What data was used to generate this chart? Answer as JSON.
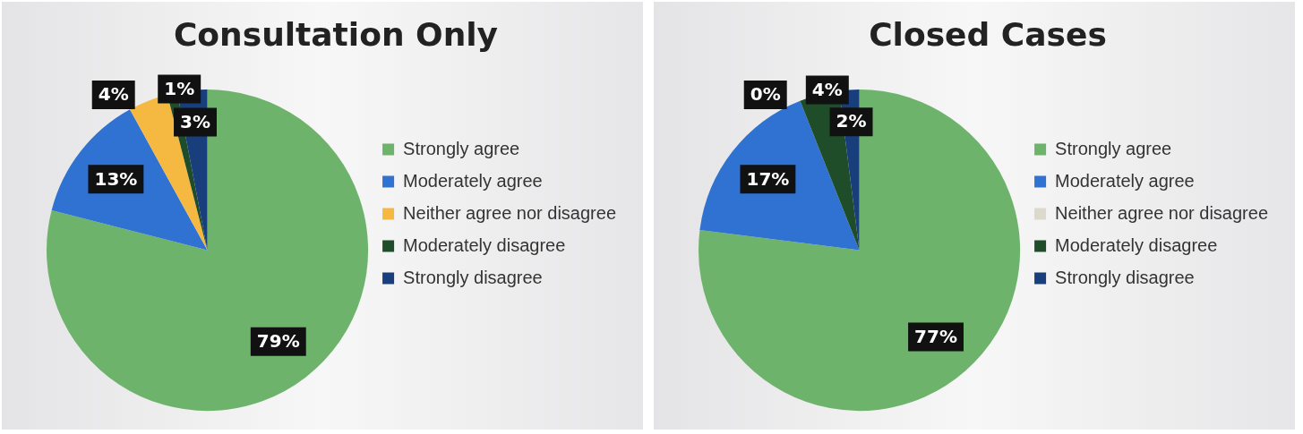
{
  "chart_data": [
    {
      "type": "pie",
      "title": "Consultation Only",
      "categories": [
        "Strongly agree",
        "Moderately agree",
        "Neither agree nor disagree",
        "Moderately disagree",
        "Strongly disagree"
      ],
      "values": [
        79,
        13,
        4,
        1,
        3
      ],
      "value_labels": [
        "79%",
        "13%",
        "4%",
        "1%",
        "3%"
      ],
      "colors": [
        "#6db36b",
        "#2f72d2",
        "#f5b942",
        "#1f4d2a",
        "#183f7c"
      ],
      "legend": "right"
    },
    {
      "type": "pie",
      "title": "Closed Cases",
      "categories": [
        "Strongly agree",
        "Moderately agree",
        "Neither agree nor disagree",
        "Moderately disagree",
        "Strongly disagree"
      ],
      "values": [
        77,
        17,
        0,
        4,
        2
      ],
      "value_labels": [
        "77%",
        "17%",
        "0%",
        "4%",
        "2%"
      ],
      "colors": [
        "#6db36b",
        "#2f72d2",
        "#dcd9cc",
        "#1f4d2a",
        "#183f7c"
      ],
      "legend": "right"
    }
  ]
}
